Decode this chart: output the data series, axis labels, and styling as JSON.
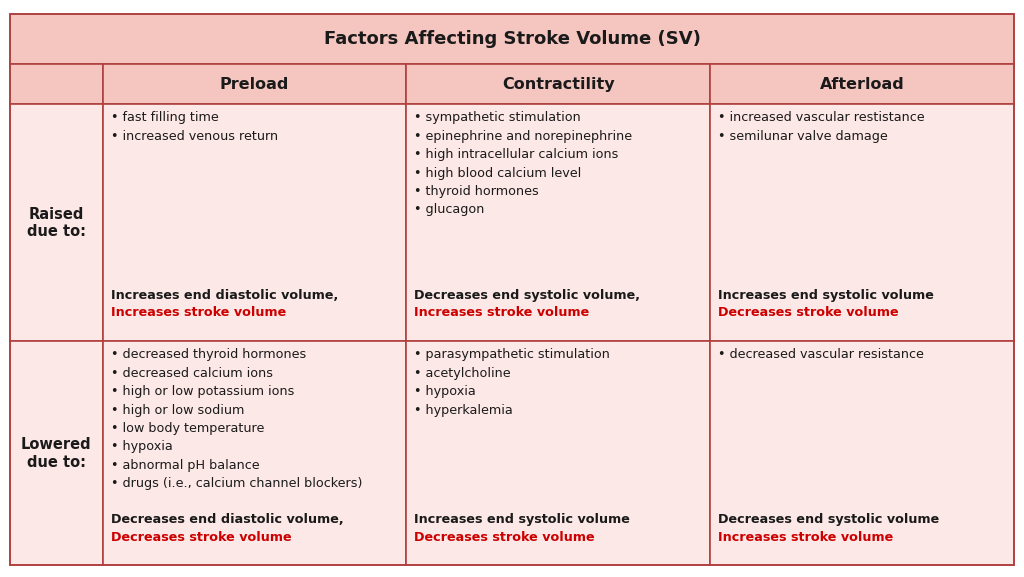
{
  "title": "Factors Affecting Stroke Volume (SV)",
  "col_headers": [
    "Preload",
    "Contractility",
    "Afterload"
  ],
  "row_headers": [
    "Raised\ndue to:",
    "Lowered\ndue to:"
  ],
  "bg_color": "#fce8e6",
  "header_bg": "#f5c6c0",
  "border_color": "#b04040",
  "text_color": "#1a1a1a",
  "red_color": "#cc0000",
  "outer_bg": "#ffffff",
  "cells": [
    {
      "row": 0,
      "col": 0,
      "bullets": [
        "• fast filling time",
        "• increased venous return"
      ],
      "summary_black": "Increases end diastolic volume,",
      "summary_red": "Increases stroke volume"
    },
    {
      "row": 0,
      "col": 1,
      "bullets": [
        "• sympathetic stimulation",
        "• epinephrine and norepinephrine",
        "• high intracellular calcium ions",
        "• high blood calcium level",
        "• thyroid hormones",
        "• glucagon"
      ],
      "summary_black": "Decreases end systolic volume,",
      "summary_red": "Increases stroke volume"
    },
    {
      "row": 0,
      "col": 2,
      "bullets": [
        "• increased vascular restistance",
        "• semilunar valve damage"
      ],
      "summary_black": "Increases end systolic volume",
      "summary_red": "Decreases stroke volume"
    },
    {
      "row": 1,
      "col": 0,
      "bullets": [
        "• decreased thyroid hormones",
        "• decreased calcium ions",
        "• high or low potassium ions",
        "• high or low sodium",
        "• low body temperature",
        "• hypoxia",
        "• abnormal pH balance",
        "• drugs (i.e., calcium channel blockers)"
      ],
      "summary_black": "Decreases end diastolic volume,",
      "summary_red": "Decreases stroke volume"
    },
    {
      "row": 1,
      "col": 1,
      "bullets": [
        "• parasympathetic stimulation",
        "• acetylcholine",
        "• hypoxia",
        "• hyperkalemia"
      ],
      "summary_black": "Increases end systolic volume",
      "summary_red": "Decreases stroke volume"
    },
    {
      "row": 1,
      "col": 2,
      "bullets": [
        "• decreased vascular resistance"
      ],
      "summary_black": "Decreases end systolic volume",
      "summary_red": "Increases stroke volume"
    }
  ],
  "fig_width": 10.24,
  "fig_height": 5.77,
  "dpi": 100
}
